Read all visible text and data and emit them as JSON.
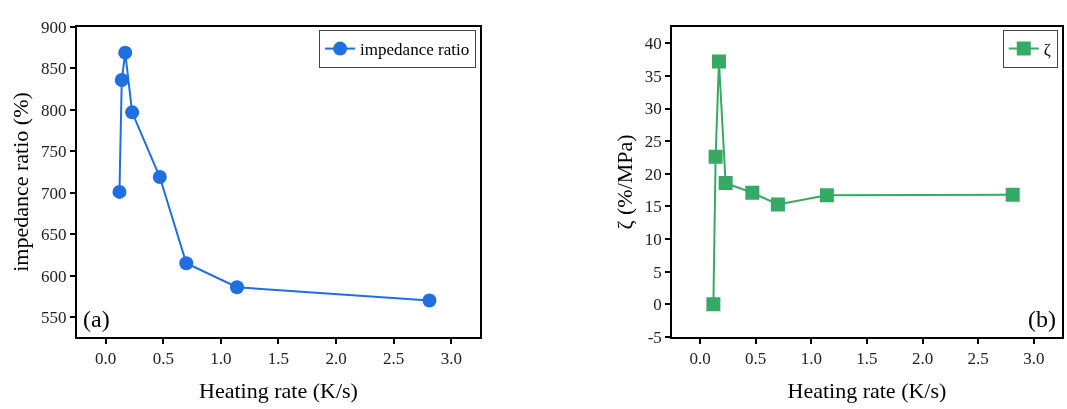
{
  "chart_data": [
    {
      "type": "line",
      "xlabel": "Heating rate (K/s)",
      "ylabel": "impedance ratio (%)",
      "x": [
        0.12,
        0.14,
        0.17,
        0.23,
        0.47,
        0.7,
        1.14,
        2.81
      ],
      "series": [
        {
          "name": "impedance ratio",
          "color": "#1f6fe0",
          "values": [
            701,
            836,
            869,
            797,
            719,
            615,
            586,
            570
          ]
        }
      ],
      "xlim": [
        -0.25,
        3.25
      ],
      "xticks": [
        {
          "value": 0,
          "label": "0.0"
        },
        0.5,
        {
          "value": 1,
          "label": "1.0"
        },
        1.5,
        {
          "value": 2,
          "label": "2.0"
        },
        2.5,
        {
          "value": 3,
          "label": "3.0"
        }
      ],
      "ylim": [
        526,
        900
      ],
      "yticks": [
        550,
        600,
        650,
        700,
        750,
        800,
        850,
        900
      ],
      "annotations": [
        "(a)"
      ],
      "legend": "top right",
      "marker": "circle",
      "line_style": "solid"
    },
    {
      "type": "line",
      "xlabel": "Heating rate (K/s)",
      "ylabel": "ζ (%/MPa)",
      "x": [
        0.12,
        0.14,
        0.17,
        0.23,
        0.47,
        0.7,
        1.14,
        2.81
      ],
      "series": [
        {
          "name": "ζ",
          "color": "#36a965",
          "values": [
            0,
            22.6,
            37.2,
            18.6,
            17.1,
            15.3,
            16.7,
            16.8
          ]
        }
      ],
      "xlim": [
        -0.25,
        3.25
      ],
      "xticks": [
        {
          "value": 0,
          "label": "0.0"
        },
        0.5,
        {
          "value": 1,
          "label": "1.0"
        },
        1.5,
        {
          "value": 2,
          "label": "2.0"
        },
        2.5,
        {
          "value": 3,
          "label": "3.0"
        }
      ],
      "ylim": [
        -5,
        42.5
      ],
      "yticks": [
        -5,
        0,
        5,
        10,
        15,
        20,
        25,
        30,
        35,
        40
      ],
      "annotations": [
        "(b)"
      ],
      "legend": "top right",
      "marker": "square",
      "line_style": "solid"
    }
  ]
}
